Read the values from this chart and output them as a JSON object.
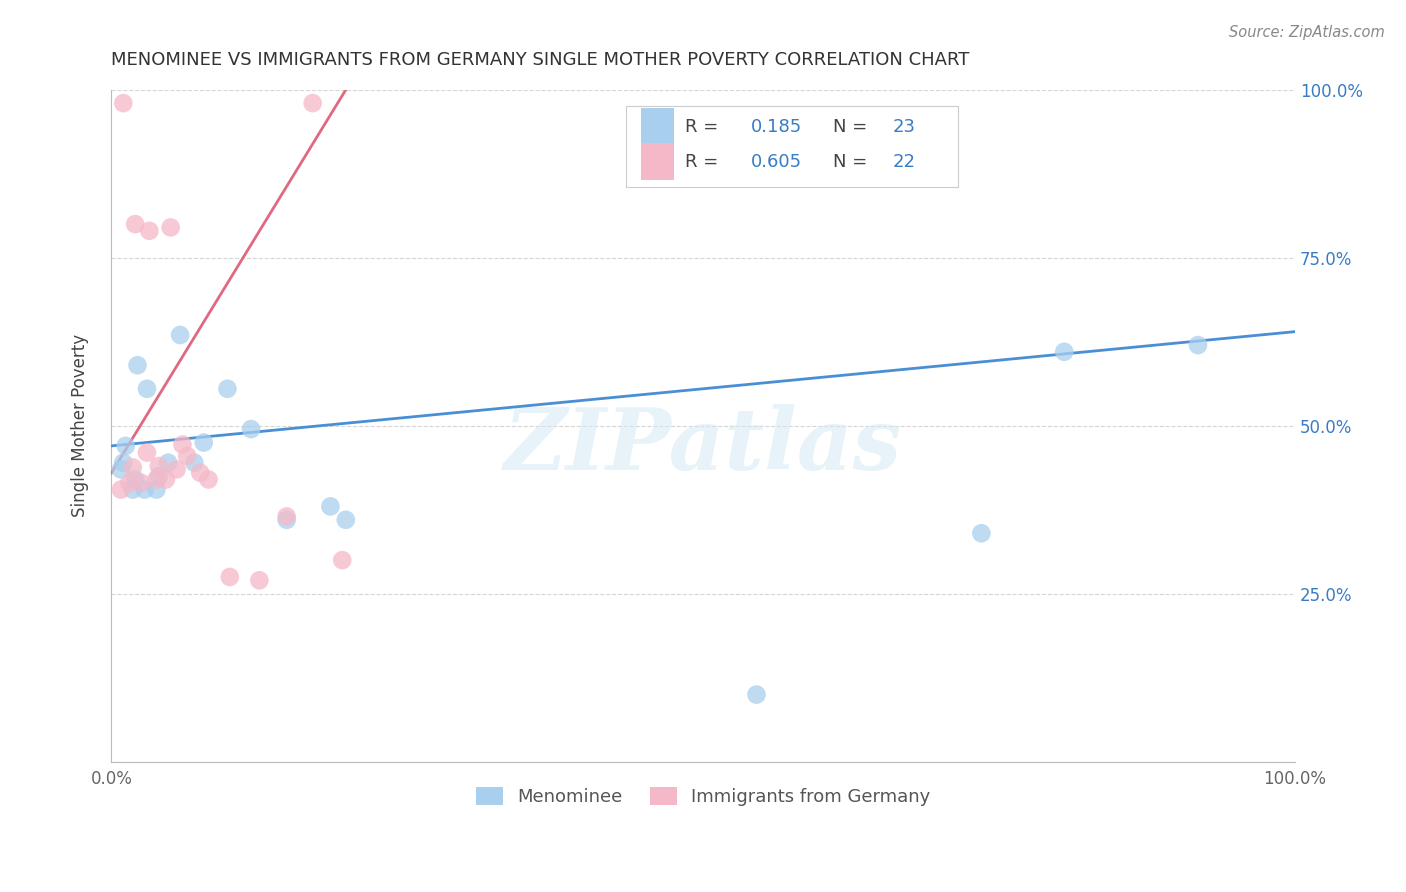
{
  "title": "MENOMINEE VS IMMIGRANTS FROM GERMANY SINGLE MOTHER POVERTY CORRELATION CHART",
  "source": "Source: ZipAtlas.com",
  "ylabel": "Single Mother Poverty",
  "xlim": [
    0,
    1
  ],
  "ylim": [
    0,
    1
  ],
  "menominee_R": 0.185,
  "menominee_N": 23,
  "germany_R": 0.605,
  "germany_N": 22,
  "menominee_color": "#A8CFEE",
  "germany_color": "#F5B8C8",
  "menominee_line_color": "#4A8FD4",
  "germany_line_color": "#E06880",
  "r_value_color": "#3A7CC4",
  "watermark_color": "#D5EAF5",
  "watermark": "ZIPatlas",
  "background_color": "#FFFFFF",
  "menominee_line_x0": 0.0,
  "menominee_line_y0": 0.47,
  "menominee_line_x1": 1.0,
  "menominee_line_y1": 0.64,
  "germany_line_x0": 0.0,
  "germany_line_y0": 0.43,
  "germany_line_x1": 0.205,
  "germany_line_y1": 1.02,
  "menominee_points_x": [
    0.008,
    0.01,
    0.012,
    0.018,
    0.02,
    0.022,
    0.028,
    0.03,
    0.038,
    0.04,
    0.048,
    0.058,
    0.07,
    0.078,
    0.098,
    0.118,
    0.148,
    0.185,
    0.198,
    0.545,
    0.735,
    0.805,
    0.918
  ],
  "menominee_points_y": [
    0.435,
    0.445,
    0.47,
    0.405,
    0.42,
    0.59,
    0.405,
    0.555,
    0.405,
    0.425,
    0.445,
    0.635,
    0.445,
    0.475,
    0.555,
    0.495,
    0.36,
    0.38,
    0.36,
    0.1,
    0.34,
    0.61,
    0.62
  ],
  "germany_points_x": [
    0.008,
    0.01,
    0.015,
    0.018,
    0.02,
    0.025,
    0.03,
    0.032,
    0.038,
    0.04,
    0.046,
    0.05,
    0.055,
    0.06,
    0.064,
    0.075,
    0.082,
    0.1,
    0.125,
    0.148,
    0.17,
    0.195
  ],
  "germany_points_y": [
    0.405,
    0.98,
    0.415,
    0.438,
    0.8,
    0.415,
    0.46,
    0.79,
    0.42,
    0.44,
    0.42,
    0.795,
    0.435,
    0.472,
    0.455,
    0.43,
    0.42,
    0.275,
    0.27,
    0.365,
    0.98,
    0.3
  ]
}
